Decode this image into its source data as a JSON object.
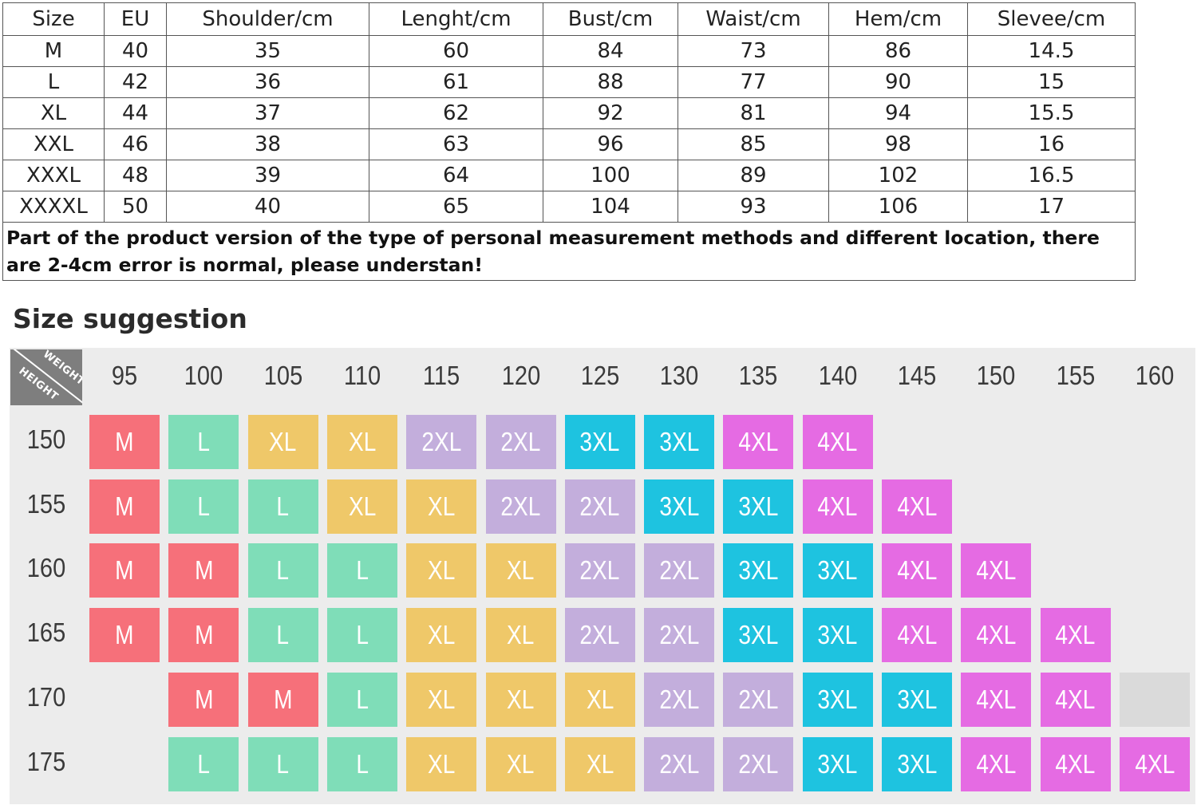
{
  "size_table": {
    "headers": [
      "Size",
      "EU",
      "Shoulder/cm",
      "Lenght/cm",
      "Bust/cm",
      "Waist/cm",
      "Hem/cm",
      "Slevee/cm"
    ],
    "rows": [
      [
        "M",
        "40",
        "35",
        "60",
        "84",
        "73",
        "86",
        "14.5"
      ],
      [
        "L",
        "42",
        "36",
        "61",
        "88",
        "77",
        "90",
        "15"
      ],
      [
        "XL",
        "44",
        "37",
        "62",
        "92",
        "81",
        "94",
        "15.5"
      ],
      [
        "XXL",
        "46",
        "38",
        "63",
        "96",
        "85",
        "98",
        "16"
      ],
      [
        "XXXL",
        "48",
        "39",
        "64",
        "100",
        "89",
        "102",
        "16.5"
      ],
      [
        "XXXXL",
        "50",
        "40",
        "65",
        "104",
        "93",
        "106",
        "17"
      ]
    ],
    "note": "Part of the product version of the type of personal measurement methods and different location, there are 2-4cm error is normal, please understan!"
  },
  "suggestion": {
    "title": "Size suggestion",
    "corner_weight": "WEIGHT",
    "corner_height": "HEIGHT",
    "weights": [
      "95",
      "100",
      "105",
      "110",
      "115",
      "120",
      "125",
      "130",
      "135",
      "140",
      "145",
      "150",
      "155",
      "160"
    ],
    "heights": [
      "150",
      "155",
      "160",
      "165",
      "170",
      "175"
    ],
    "grid": [
      [
        "M",
        "L",
        "XL",
        "XL",
        "2XL",
        "2XL",
        "3XL",
        "3XL",
        "4XL",
        "4XL",
        "",
        "",
        "",
        ""
      ],
      [
        "M",
        "L",
        "L",
        "XL",
        "XL",
        "2XL",
        "2XL",
        "3XL",
        "3XL",
        "4XL",
        "4XL",
        "",
        "",
        ""
      ],
      [
        "M",
        "M",
        "L",
        "L",
        "XL",
        "XL",
        "2XL",
        "2XL",
        "3XL",
        "3XL",
        "4XL",
        "4XL",
        "",
        ""
      ],
      [
        "M",
        "M",
        "L",
        "L",
        "XL",
        "XL",
        "2XL",
        "2XL",
        "3XL",
        "3XL",
        "4XL",
        "4XL",
        "4XL",
        ""
      ],
      [
        "",
        "M",
        "M",
        "L",
        "XL",
        "XL",
        "XL",
        "2XL",
        "2XL",
        "3XL",
        "3XL",
        "4XL",
        "4XL",
        "-"
      ],
      [
        "",
        "L",
        "L",
        "L",
        "XL",
        "XL",
        "XL",
        "2XL",
        "2XL",
        "3XL",
        "3XL",
        "4XL",
        "4XL",
        "4XL"
      ]
    ],
    "colors": {
      "M": "#f6707a",
      "L": "#7fddb8",
      "XL": "#efc869",
      "2XL": "#c3aedc",
      "3XL": "#1ec3e0",
      "4XL": "#e56be3",
      "blank": "#dadada",
      "corner": "#7e7e7e"
    }
  }
}
